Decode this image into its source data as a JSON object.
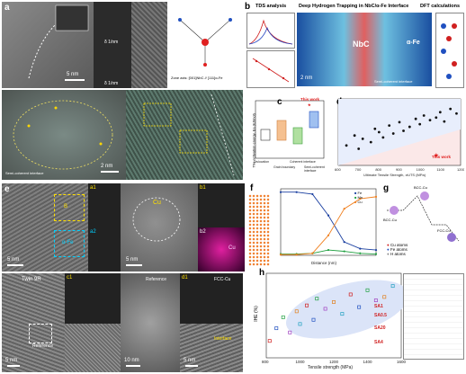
{
  "figure": {
    "panel_a": {
      "label": "a",
      "scale_top": "5 nm",
      "scale_mid": "2 nm",
      "fft_labels": [
        "δ 1/nm",
        "δ 1/nm"
      ],
      "caption": "Zone axis: [001]NbC // [111]α-Fe",
      "semi": "Semi-coherent interface"
    },
    "panel_b": {
      "label": "b",
      "title_left": "TDS analysis",
      "title_mid": "Deep Hydrogen Trapping in NbC/α-Fe Interface",
      "title_right": "DFT calculations",
      "nbc": "NbC",
      "fe": "α-Fe",
      "scale": "2 nm",
      "semi": "Semi-coherent interface"
    },
    "panel_c": {
      "label": "c",
      "ylabel": "The activation energy, Ea (kJ/mol)",
      "categories": [
        "Dislocation",
        "Grain boundary",
        "Coherent interface",
        "Semi-coherent interface"
      ],
      "this_work": "This work"
    },
    "panel_d": {
      "label": "d",
      "xlabel": "Ultimate Tensile Strength, σUTS (MPa)",
      "this_work": "This work",
      "xticks": [
        "600",
        "700",
        "800",
        "900",
        "1000",
        "1100",
        "1200"
      ]
    },
    "panel_e": {
      "label": "e",
      "a1": "a1",
      "a2": "a2",
      "b1": "b1",
      "b2": "b2",
      "b_region": "B",
      "cu": "Cu",
      "fe": "α-Fe",
      "scale1": "5 nm",
      "scale2": "5 nm",
      "twin": "Twin 9R",
      "reference": "Reference",
      "c1": "c1",
      "d1": "d1",
      "scale3": "5 nm",
      "scale4": "10 nm",
      "scale5": "5 nm",
      "fcc": "FCC-Cu",
      "interface": "Interface"
    },
    "panel_f": {
      "label": "f",
      "xlabel": "Distance (nm)",
      "ylabel": "Concentration (at%)",
      "legend": [
        "Fe",
        "Mn",
        "Cu"
      ]
    },
    "panel_g": {
      "label": "g",
      "states": [
        "BCC-Cu",
        "BCC-Cu",
        "FCC-Cu"
      ],
      "legend": [
        "Cu atoms",
        "Fe atoms",
        "H atoms"
      ]
    },
    "panel_h": {
      "label": "h",
      "xlabel": "Tensile strength (MPa)",
      "ylabel": "IHE (%)",
      "xticks": [
        "800",
        "1000",
        "1200",
        "1400",
        "1600"
      ],
      "annotations": [
        "SA1",
        "SA0.5",
        "SA20",
        "SA4"
      ]
    }
  },
  "chart_data": [
    {
      "type": "scatter",
      "panel": "d",
      "xlabel": "Ultimate Tensile Strength, σUTS (MPa)",
      "xlim": [
        600,
        1200
      ],
      "series": [
        {
          "name": "",
          "x": [
            640,
            680,
            700,
            720,
            760,
            780,
            800,
            820,
            850,
            870,
            900,
            920,
            950,
            980,
            1000,
            1020,
            1050,
            1080,
            1100,
            1120,
            1150,
            1180
          ],
          "y": [
            30,
            45,
            25,
            40,
            35,
            55,
            50,
            42,
            60,
            48,
            65,
            52,
            58,
            70,
            62,
            75,
            68,
            72,
            80,
            66,
            85,
            78
          ]
        }
      ],
      "this_work_point": {
        "x": 1080,
        "y": 15
      }
    },
    {
      "type": "scatter",
      "panel": "h",
      "xlabel": "Tensile strength (MPa)",
      "ylabel": "IHE (%)",
      "xlim": [
        800,
        1600
      ],
      "ylim": [
        0,
        100
      ],
      "series": [
        {
          "name": "",
          "x": [
            820,
            860,
            900,
            940,
            980,
            1000,
            1040,
            1080,
            1100,
            1150,
            1200,
            1250,
            1300,
            1350,
            1400,
            1450,
            1500,
            1550
          ],
          "y": [
            20,
            35,
            48,
            30,
            55,
            40,
            62,
            45,
            70,
            58,
            66,
            52,
            75,
            60,
            80,
            68,
            72,
            85
          ]
        }
      ]
    },
    {
      "type": "line",
      "panel": "f",
      "xlabel": "Distance (nm)",
      "ylabel": "Concentration (at%)",
      "series": [
        {
          "name": "Fe",
          "x": [
            -6,
            -4,
            -2,
            0,
            2,
            4,
            6
          ],
          "y": [
            95,
            95,
            92,
            60,
            20,
            10,
            8
          ]
        },
        {
          "name": "Mn",
          "x": [
            -6,
            -4,
            -2,
            0,
            2,
            4,
            6
          ],
          "y": [
            2,
            2,
            3,
            8,
            6,
            3,
            2
          ]
        },
        {
          "name": "Cu",
          "x": [
            -6,
            -4,
            -2,
            0,
            2,
            4,
            6
          ],
          "y": [
            1,
            1,
            3,
            30,
            70,
            85,
            88
          ]
        }
      ]
    }
  ]
}
